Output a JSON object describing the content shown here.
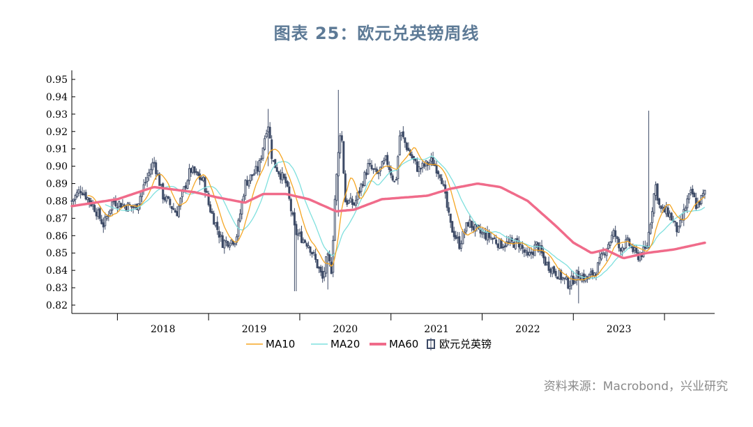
{
  "title": "图表 25：欧元兑英镑周线",
  "source": "资料来源：Macrobond，兴业研究",
  "chart_data": {
    "type": "candlestick",
    "ylim": [
      0.82,
      0.95
    ],
    "y_ticks": [
      "0.82",
      "0.83",
      "0.84",
      "0.85",
      "0.86",
      "0.87",
      "0.88",
      "0.89",
      "0.90",
      "0.91",
      "0.92",
      "0.93",
      "0.94",
      "0.95"
    ],
    "x_tick_labels": [
      "2018",
      "2019",
      "2020",
      "2021",
      "2022",
      "2023"
    ],
    "series": [
      {
        "name": "MA10",
        "color": "#f5a623"
      },
      {
        "name": "MA20",
        "color": "#7fe0de"
      },
      {
        "name": "MA60",
        "color": "#f06b8a"
      },
      {
        "name": "欧元兑英镑",
        "color": "#3d4a66"
      }
    ],
    "close_anchors": [
      [
        2017.5,
        0.88
      ],
      [
        2017.6,
        0.887
      ],
      [
        2017.75,
        0.876
      ],
      [
        2017.85,
        0.866
      ],
      [
        2017.95,
        0.88
      ],
      [
        2018.05,
        0.878
      ],
      [
        2018.2,
        0.876
      ],
      [
        2018.3,
        0.89
      ],
      [
        2018.4,
        0.903
      ],
      [
        2018.5,
        0.883
      ],
      [
        2018.65,
        0.873
      ],
      [
        2018.8,
        0.898
      ],
      [
        2018.95,
        0.891
      ],
      [
        2019.0,
        0.878
      ],
      [
        2019.15,
        0.856
      ],
      [
        2019.3,
        0.858
      ],
      [
        2019.4,
        0.89
      ],
      [
        2019.55,
        0.899
      ],
      [
        2019.65,
        0.926
      ],
      [
        2019.7,
        0.903
      ],
      [
        2019.85,
        0.89
      ],
      [
        2019.95,
        0.862
      ],
      [
        2020.1,
        0.855
      ],
      [
        2020.2,
        0.842
      ],
      [
        2020.25,
        0.835
      ],
      [
        2020.3,
        0.848
      ],
      [
        2020.35,
        0.84
      ],
      [
        2020.38,
        0.878
      ],
      [
        2020.45,
        0.925
      ],
      [
        2020.5,
        0.88
      ],
      [
        2020.6,
        0.878
      ],
      [
        2020.75,
        0.9
      ],
      [
        2020.85,
        0.895
      ],
      [
        2020.95,
        0.904
      ],
      [
        2021.05,
        0.889
      ],
      [
        2021.1,
        0.92
      ],
      [
        2021.2,
        0.908
      ],
      [
        2021.3,
        0.898
      ],
      [
        2021.45,
        0.903
      ],
      [
        2021.55,
        0.895
      ],
      [
        2021.65,
        0.866
      ],
      [
        2021.75,
        0.855
      ],
      [
        2021.85,
        0.868
      ],
      [
        2021.95,
        0.862
      ],
      [
        2022.1,
        0.859
      ],
      [
        2022.2,
        0.855
      ],
      [
        2022.4,
        0.856
      ],
      [
        2022.5,
        0.847
      ],
      [
        2022.6,
        0.855
      ],
      [
        2022.7,
        0.844
      ],
      [
        2022.85,
        0.837
      ],
      [
        2022.95,
        0.832
      ],
      [
        2023.05,
        0.838
      ],
      [
        2023.15,
        0.835
      ],
      [
        2023.25,
        0.84
      ],
      [
        2023.35,
        0.852
      ],
      [
        2023.45,
        0.862
      ],
      [
        2023.5,
        0.853
      ],
      [
        2023.6,
        0.856
      ],
      [
        2023.7,
        0.848
      ],
      [
        2023.8,
        0.852
      ],
      [
        2023.85,
        0.87
      ],
      [
        2023.9,
        0.89
      ],
      [
        2023.95,
        0.875
      ],
      [
        2024.05,
        0.873
      ],
      [
        2024.15,
        0.862
      ],
      [
        2024.25,
        0.88
      ],
      [
        2024.3,
        0.885
      ],
      [
        2024.35,
        0.877
      ],
      [
        2024.45,
        0.885
      ]
    ],
    "spikes": [
      [
        2019.65,
        0.933,
        0.9
      ],
      [
        2020.42,
        0.944,
        0.871
      ],
      [
        2023.82,
        0.932,
        0.858
      ],
      [
        2019.95,
        0.862,
        0.828
      ],
      [
        2020.3,
        0.848,
        0.829
      ],
      [
        2023.05,
        0.842,
        0.821
      ]
    ],
    "ma60_anchors": [
      [
        2017.5,
        0.877
      ],
      [
        2018.0,
        0.881
      ],
      [
        2018.4,
        0.888
      ],
      [
        2018.85,
        0.885
      ],
      [
        2019.1,
        0.882
      ],
      [
        2019.4,
        0.879
      ],
      [
        2019.6,
        0.884
      ],
      [
        2019.85,
        0.884
      ],
      [
        2020.1,
        0.881
      ],
      [
        2020.4,
        0.874
      ],
      [
        2020.6,
        0.875
      ],
      [
        2020.9,
        0.881
      ],
      [
        2021.4,
        0.883
      ],
      [
        2021.65,
        0.887
      ],
      [
        2021.95,
        0.89
      ],
      [
        2022.2,
        0.888
      ],
      [
        2022.5,
        0.88
      ],
      [
        2022.8,
        0.866
      ],
      [
        2023.0,
        0.856
      ],
      [
        2023.2,
        0.85
      ],
      [
        2023.35,
        0.852
      ],
      [
        2023.55,
        0.847
      ],
      [
        2023.8,
        0.85
      ],
      [
        2024.1,
        0.852
      ],
      [
        2024.45,
        0.856
      ]
    ]
  }
}
